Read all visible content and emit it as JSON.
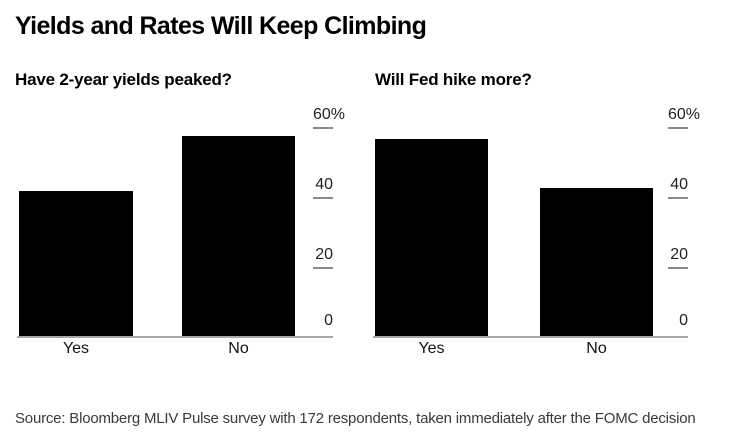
{
  "figure": {
    "title": "Yields and Rates Will Keep Climbing",
    "source_note": "Source: Bloomberg MLIV Pulse survey with 172 respondents, taken immediately after the FOMC decision"
  },
  "colors": {
    "bar": "#000000",
    "baseline": "#a8a8a8",
    "tick": "#8a8a8a",
    "axis_text": "#222222",
    "source_text": "#3a3a3a",
    "background": "#ffffff"
  },
  "chart_data": [
    {
      "type": "bar",
      "title": "Have 2-year yields peaked?",
      "categories": [
        "Yes",
        "No"
      ],
      "values": [
        42,
        58
      ],
      "unit": "%",
      "ylim": [
        0,
        60
      ],
      "yticks": [
        0,
        20,
        40,
        60
      ],
      "ytick_labels": [
        "0",
        "20",
        "40",
        "60%"
      ],
      "axis_side": "right",
      "grid": false,
      "bar_color": "#000000"
    },
    {
      "type": "bar",
      "title": "Will Fed hike more?",
      "categories": [
        "Yes",
        "No"
      ],
      "values": [
        57,
        43
      ],
      "unit": "%",
      "ylim": [
        0,
        60
      ],
      "yticks": [
        0,
        20,
        40,
        60
      ],
      "ytick_labels": [
        "0",
        "20",
        "40",
        "60%"
      ],
      "axis_side": "right",
      "grid": false,
      "bar_color": "#000000"
    }
  ]
}
